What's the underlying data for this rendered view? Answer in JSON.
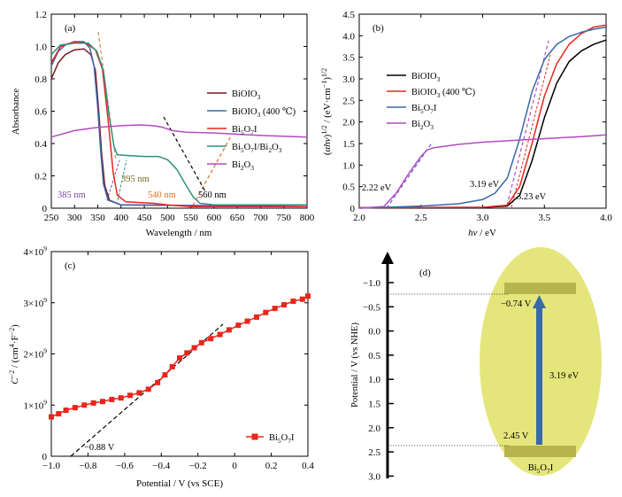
{
  "chart_data": [
    {
      "type": "line",
      "panel_label": "(a)",
      "xlabel": "Wavelength / nm",
      "ylabel": "Absorbance",
      "xlim": [
        250,
        800
      ],
      "ylim": [
        0,
        1.2
      ],
      "x_ticks": [
        "250",
        "300",
        "350",
        "400",
        "450",
        "500",
        "550",
        "600",
        "650",
        "700",
        "750",
        "800"
      ],
      "y_ticks": [
        "0",
        "0.2",
        "0.4",
        "0.6",
        "0.8",
        "1.0",
        "1.2"
      ],
      "legend_position": "right-center",
      "series": [
        {
          "name": "BiOIO3",
          "name_sub": "3",
          "color": "#7a1a24",
          "points": [
            [
              250,
              0.8
            ],
            [
              265,
              0.9
            ],
            [
              280,
              0.95
            ],
            [
              300,
              0.98
            ],
            [
              320,
              0.985
            ],
            [
              335,
              0.95
            ],
            [
              345,
              0.85
            ],
            [
              352,
              0.6
            ],
            [
              358,
              0.35
            ],
            [
              365,
              0.14
            ],
            [
              375,
              0.05
            ],
            [
              400,
              0.02
            ],
            [
              800,
              0.01
            ]
          ]
        },
        {
          "name": "BiOIO3 (400 ℃)",
          "name_sub": "3",
          "name_tail": " (400 ℃)",
          "color": "#3a68a8",
          "points": [
            [
              250,
              0.88
            ],
            [
              265,
              0.97
            ],
            [
              280,
              1.01
            ],
            [
              300,
              1.03
            ],
            [
              320,
              1.03
            ],
            [
              333,
              0.99
            ],
            [
              342,
              0.88
            ],
            [
              350,
              0.62
            ],
            [
              356,
              0.36
            ],
            [
              362,
              0.15
            ],
            [
              372,
              0.05
            ],
            [
              400,
              0.02
            ],
            [
              800,
              0.01
            ]
          ]
        },
        {
          "name": "Bi5O7I",
          "color": "#e8261c",
          "points": [
            [
              250,
              0.9
            ],
            [
              270,
              1.0
            ],
            [
              300,
              1.03
            ],
            [
              325,
              1.02
            ],
            [
              345,
              0.98
            ],
            [
              360,
              0.86
            ],
            [
              372,
              0.55
            ],
            [
              383,
              0.22
            ],
            [
              392,
              0.08
            ],
            [
              410,
              0.04
            ],
            [
              470,
              0.03
            ],
            [
              500,
              0.02
            ],
            [
              550,
              0.01
            ],
            [
              800,
              0.01
            ]
          ]
        },
        {
          "name": "Bi5O7I/Bi2O3",
          "color": "#2f8f7c",
          "points": [
            [
              250,
              0.95
            ],
            [
              270,
              1.01
            ],
            [
              300,
              1.02
            ],
            [
              330,
              1.02
            ],
            [
              348,
              0.97
            ],
            [
              362,
              0.85
            ],
            [
              375,
              0.56
            ],
            [
              385,
              0.38
            ],
            [
              392,
              0.33
            ],
            [
              420,
              0.325
            ],
            [
              450,
              0.32
            ],
            [
              480,
              0.32
            ],
            [
              500,
              0.3
            ],
            [
              520,
              0.24
            ],
            [
              540,
              0.14
            ],
            [
              555,
              0.07
            ],
            [
              570,
              0.03
            ],
            [
              600,
              0.02
            ],
            [
              800,
              0.02
            ]
          ]
        },
        {
          "name": "Bi2O3",
          "color": "#b24bc0",
          "points": [
            [
              250,
              0.44
            ],
            [
              300,
              0.48
            ],
            [
              350,
              0.5
            ],
            [
              400,
              0.51
            ],
            [
              440,
              0.515
            ],
            [
              470,
              0.51
            ],
            [
              490,
              0.5
            ],
            [
              510,
              0.48
            ],
            [
              540,
              0.47
            ],
            [
              600,
              0.465
            ],
            [
              700,
              0.45
            ],
            [
              800,
              0.44
            ]
          ]
        }
      ],
      "annotations": [
        {
          "text": "385 nm",
          "color": "#7a4aa0",
          "x": 385
        },
        {
          "text": "395 nm",
          "color": "#7a6a20",
          "x": 395
        },
        {
          "text": "540 nm",
          "color": "#e07020",
          "x": 540
        },
        {
          "text": "560 nm",
          "color": "#000000",
          "x": 560
        }
      ]
    },
    {
      "type": "line",
      "panel_label": "(b)",
      "xlabel": "hν / eV",
      "ylabel": "(αhν)1/2 / (eV·cm⁻¹)1/2",
      "xlim": [
        2.0,
        4.0
      ],
      "ylim": [
        0,
        4.5
      ],
      "x_ticks": [
        "2.0",
        "2.5",
        "3.0",
        "3.5",
        "4.0"
      ],
      "y_ticks": [
        "0",
        "0.5",
        "1.0",
        "1.5",
        "2.0",
        "2.5",
        "3.0",
        "3.5",
        "4.0",
        "4.5"
      ],
      "legend_position": "left-center",
      "series": [
        {
          "name": "BiOIO3",
          "color": "#000000",
          "points": [
            [
              2.0,
              0.01
            ],
            [
              3.0,
              0.02
            ],
            [
              3.2,
              0.05
            ],
            [
              3.3,
              0.3
            ],
            [
              3.4,
              1.1
            ],
            [
              3.5,
              2.1
            ],
            [
              3.6,
              2.9
            ],
            [
              3.7,
              3.4
            ],
            [
              3.8,
              3.65
            ],
            [
              3.9,
              3.8
            ],
            [
              4.0,
              3.9
            ]
          ]
        },
        {
          "name": "BiOIO3 (400 ℃)",
          "color": "#e8261c",
          "points": [
            [
              2.0,
              0.01
            ],
            [
              3.0,
              0.02
            ],
            [
              3.2,
              0.07
            ],
            [
              3.3,
              0.5
            ],
            [
              3.4,
              1.5
            ],
            [
              3.5,
              2.6
            ],
            [
              3.6,
              3.35
            ],
            [
              3.7,
              3.8
            ],
            [
              3.8,
              4.05
            ],
            [
              3.9,
              4.2
            ],
            [
              4.0,
              4.25
            ]
          ]
        },
        {
          "name": "Bi5O7I",
          "color": "#3a68a8",
          "points": [
            [
              2.0,
              0.0
            ],
            [
              2.5,
              0.05
            ],
            [
              2.8,
              0.1
            ],
            [
              3.0,
              0.2
            ],
            [
              3.1,
              0.35
            ],
            [
              3.2,
              0.7
            ],
            [
              3.3,
              1.6
            ],
            [
              3.4,
              2.7
            ],
            [
              3.5,
              3.45
            ],
            [
              3.6,
              3.8
            ],
            [
              3.7,
              3.98
            ],
            [
              3.8,
              4.08
            ],
            [
              3.9,
              4.15
            ],
            [
              4.0,
              4.2
            ]
          ]
        },
        {
          "name": "Bi2O3",
          "color": "#b24bc0",
          "points": [
            [
              2.0,
              0.0
            ],
            [
              2.2,
              0.04
            ],
            [
              2.3,
              0.35
            ],
            [
              2.4,
              0.8
            ],
            [
              2.5,
              1.2
            ],
            [
              2.55,
              1.35
            ],
            [
              2.6,
              1.4
            ],
            [
              2.8,
              1.48
            ],
            [
              3.0,
              1.53
            ],
            [
              3.3,
              1.58
            ],
            [
              3.6,
              1.63
            ],
            [
              3.8,
              1.66
            ],
            [
              4.0,
              1.7
            ]
          ]
        }
      ],
      "annotations": [
        {
          "text": "2.22 eV",
          "x": 2.22
        },
        {
          "text": "3.19 eV",
          "x": 3.19
        },
        {
          "text": "3.23 eV",
          "x": 3.23
        }
      ]
    },
    {
      "type": "line",
      "panel_label": "(c)",
      "xlabel": "Potential / V (vs SCE)",
      "ylabel": "C⁻² / (cm⁴·F⁻²)",
      "xlim": [
        -1.0,
        0.4
      ],
      "ylim": [
        0,
        4000000000.0
      ],
      "x_ticks": [
        "−1.0",
        "−0.8",
        "−0.6",
        "−0.4",
        "−0.2",
        "0",
        "0.2",
        "0.4"
      ],
      "y_ticks": [
        "0",
        "1×10⁹",
        "2×10⁹",
        "3×10⁹",
        "4×10⁹"
      ],
      "legend_position": "bottom-right",
      "series": [
        {
          "name": "Bi5O7I",
          "color": "#e8261c",
          "points": [
            [
              -1.0,
              770000000.0
            ],
            [
              -0.96,
              830000000.0
            ],
            [
              -0.92,
              900000000.0
            ],
            [
              -0.87,
              950000000.0
            ],
            [
              -0.82,
              1000000000.0
            ],
            [
              -0.77,
              1040000000.0
            ],
            [
              -0.72,
              1070000000.0
            ],
            [
              -0.67,
              1110000000.0
            ],
            [
              -0.62,
              1140000000.0
            ],
            [
              -0.57,
              1190000000.0
            ],
            [
              -0.52,
              1240000000.0
            ],
            [
              -0.47,
              1310000000.0
            ],
            [
              -0.42,
              1440000000.0
            ],
            [
              -0.38,
              1590000000.0
            ],
            [
              -0.34,
              1750000000.0
            ],
            [
              -0.3,
              1920000000.0
            ],
            [
              -0.26,
              2020000000.0
            ],
            [
              -0.22,
              2120000000.0
            ],
            [
              -0.18,
              2220000000.0
            ],
            [
              -0.13,
              2300000000.0
            ],
            [
              -0.08,
              2380000000.0
            ],
            [
              -0.03,
              2470000000.0
            ],
            [
              0.02,
              2560000000.0
            ],
            [
              0.07,
              2640000000.0
            ],
            [
              0.12,
              2720000000.0
            ],
            [
              0.17,
              2810000000.0
            ],
            [
              0.22,
              2890000000.0
            ],
            [
              0.27,
              2960000000.0
            ],
            [
              0.32,
              3030000000.0
            ],
            [
              0.37,
              3070000000.0
            ],
            [
              0.4,
              3130000000.0
            ]
          ]
        }
      ],
      "annotations": [
        {
          "text": "−0.88 V",
          "x": -0.88
        }
      ]
    },
    {
      "type": "diagram",
      "panel_label": "(d)",
      "ylabel": "Potential / V (vs NHE)",
      "ylim": [
        -1.5,
        3.0
      ],
      "y_ticks": [
        "−1.0",
        "−0.5",
        "0.0",
        "0.5",
        "1.0",
        "1.5",
        "2.0",
        "2.5",
        "3.0"
      ],
      "conduction_band": -0.74,
      "valence_band": 2.45,
      "cb_label": "−0.74 V",
      "vb_label": "2.45 V",
      "gap_label": "3.19 eV",
      "material": "Bi5O7I",
      "colors": {
        "ellipse": "#e4e67c",
        "band": "#b7b44e",
        "arrow": "#3a68a8"
      }
    }
  ]
}
